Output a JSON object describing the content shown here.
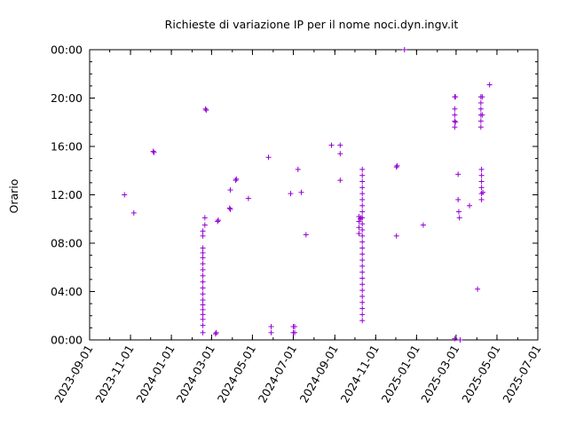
{
  "chart_data": {
    "type": "scatter",
    "title": "Richieste di variazione IP per il nome noci.dyn.ingv.it",
    "xlabel": "",
    "ylabel": "Orario",
    "x_ticks": [
      "2023-09-01",
      "2023-11-01",
      "2024-01-01",
      "2024-03-01",
      "2024-05-01",
      "2024-07-01",
      "2024-09-01",
      "2024-11-01",
      "2025-01-01",
      "2025-03-01",
      "2025-05-01",
      "2025-07-01"
    ],
    "y_ticks": [
      "00:00",
      "04:00",
      "08:00",
      "12:00",
      "16:00",
      "20:00",
      "00:00"
    ],
    "xlim": [
      "2023-09-01",
      "2025-07-01"
    ],
    "ylim": [
      0,
      24
    ],
    "y_unit": "hours",
    "grid": false,
    "marker": "+",
    "color": "#9400d3",
    "points": [
      [
        "2023-10-23",
        12.0
      ],
      [
        "2023-11-06",
        10.5
      ],
      [
        "2023-12-05",
        15.6
      ],
      [
        "2023-12-06",
        15.5
      ],
      [
        "2024-02-17",
        9.0
      ],
      [
        "2024-02-17",
        8.6
      ],
      [
        "2024-02-17",
        7.6
      ],
      [
        "2024-02-17",
        7.2
      ],
      [
        "2024-02-17",
        6.8
      ],
      [
        "2024-02-17",
        6.3
      ],
      [
        "2024-02-17",
        5.8
      ],
      [
        "2024-02-17",
        5.3
      ],
      [
        "2024-02-17",
        4.8
      ],
      [
        "2024-02-17",
        4.3
      ],
      [
        "2024-02-17",
        3.8
      ],
      [
        "2024-02-17",
        3.3
      ],
      [
        "2024-02-17",
        2.9
      ],
      [
        "2024-02-17",
        2.5
      ],
      [
        "2024-02-17",
        2.1
      ],
      [
        "2024-02-17",
        1.7
      ],
      [
        "2024-02-17",
        1.2
      ],
      [
        "2024-02-17",
        0.6
      ],
      [
        "2024-02-20",
        10.1
      ],
      [
        "2024-02-20",
        9.5
      ],
      [
        "2024-02-21",
        19.1
      ],
      [
        "2024-02-22",
        19.0
      ],
      [
        "2024-03-07",
        0.5
      ],
      [
        "2024-03-08",
        0.6
      ],
      [
        "2024-03-10",
        9.8
      ],
      [
        "2024-03-11",
        9.9
      ],
      [
        "2024-03-28",
        10.9
      ],
      [
        "2024-03-29",
        10.8
      ],
      [
        "2024-03-29",
        12.4
      ],
      [
        "2024-04-06",
        13.2
      ],
      [
        "2024-04-07",
        13.3
      ],
      [
        "2024-04-25",
        11.7
      ],
      [
        "2024-05-25",
        15.1
      ],
      [
        "2024-05-29",
        1.1
      ],
      [
        "2024-05-29",
        0.6
      ],
      [
        "2024-06-27",
        12.1
      ],
      [
        "2024-07-01",
        1.1
      ],
      [
        "2024-07-01",
        0.6
      ],
      [
        "2024-07-03",
        1.1
      ],
      [
        "2024-07-03",
        0.6
      ],
      [
        "2024-07-08",
        14.1
      ],
      [
        "2024-07-13",
        12.2
      ],
      [
        "2024-07-20",
        8.7
      ],
      [
        "2024-08-27",
        16.1
      ],
      [
        "2024-09-09",
        16.1
      ],
      [
        "2024-09-09",
        15.4
      ],
      [
        "2024-09-09",
        13.2
      ],
      [
        "2024-10-07",
        10.2
      ],
      [
        "2024-10-07",
        9.8
      ],
      [
        "2024-10-07",
        9.3
      ],
      [
        "2024-10-07",
        8.8
      ],
      [
        "2024-10-09",
        10.0
      ],
      [
        "2024-10-10",
        10.1
      ],
      [
        "2024-10-12",
        14.1
      ],
      [
        "2024-10-12",
        13.6
      ],
      [
        "2024-10-12",
        13.1
      ],
      [
        "2024-10-12",
        12.6
      ],
      [
        "2024-10-12",
        12.1
      ],
      [
        "2024-10-12",
        11.6
      ],
      [
        "2024-10-12",
        11.1
      ],
      [
        "2024-10-12",
        10.6
      ],
      [
        "2024-10-12",
        10.1
      ],
      [
        "2024-10-12",
        9.6
      ],
      [
        "2024-10-12",
        9.1
      ],
      [
        "2024-10-12",
        8.6
      ],
      [
        "2024-10-12",
        8.1
      ],
      [
        "2024-10-12",
        7.6
      ],
      [
        "2024-10-12",
        7.1
      ],
      [
        "2024-10-12",
        6.6
      ],
      [
        "2024-10-12",
        6.1
      ],
      [
        "2024-10-12",
        5.6
      ],
      [
        "2024-10-12",
        5.1
      ],
      [
        "2024-10-12",
        4.6
      ],
      [
        "2024-10-12",
        4.1
      ],
      [
        "2024-10-12",
        3.6
      ],
      [
        "2024-10-12",
        3.1
      ],
      [
        "2024-10-12",
        2.6
      ],
      [
        "2024-10-12",
        2.1
      ],
      [
        "2024-10-12",
        1.6
      ],
      [
        "2024-12-02",
        8.6
      ],
      [
        "2024-12-02",
        14.3
      ],
      [
        "2024-12-03",
        14.4
      ],
      [
        "2024-12-14",
        24.0
      ],
      [
        "2025-01-11",
        9.5
      ],
      [
        "2025-02-27",
        0.1
      ],
      [
        "2025-02-27",
        20.1
      ],
      [
        "2025-02-27",
        19.1
      ],
      [
        "2025-02-27",
        18.6
      ],
      [
        "2025-02-27",
        18.1
      ],
      [
        "2025-02-27",
        17.6
      ],
      [
        "2025-02-28",
        20.1
      ],
      [
        "2025-02-28",
        18.0
      ],
      [
        "2025-03-04",
        13.7
      ],
      [
        "2025-03-04",
        11.6
      ],
      [
        "2025-03-05",
        10.6
      ],
      [
        "2025-03-06",
        10.1
      ],
      [
        "2025-03-07",
        0.0
      ],
      [
        "2025-03-21",
        11.1
      ],
      [
        "2025-04-02",
        4.2
      ],
      [
        "2025-04-07",
        20.1
      ],
      [
        "2025-04-07",
        19.6
      ],
      [
        "2025-04-07",
        19.1
      ],
      [
        "2025-04-07",
        18.6
      ],
      [
        "2025-04-07",
        18.1
      ],
      [
        "2025-04-07",
        17.6
      ],
      [
        "2025-04-08",
        14.1
      ],
      [
        "2025-04-08",
        13.6
      ],
      [
        "2025-04-08",
        13.1
      ],
      [
        "2025-04-08",
        12.6
      ],
      [
        "2025-04-08",
        12.1
      ],
      [
        "2025-04-08",
        11.6
      ],
      [
        "2025-04-09",
        20.1
      ],
      [
        "2025-04-09",
        18.6
      ],
      [
        "2025-04-10",
        12.2
      ],
      [
        "2025-04-20",
        21.1
      ]
    ]
  }
}
